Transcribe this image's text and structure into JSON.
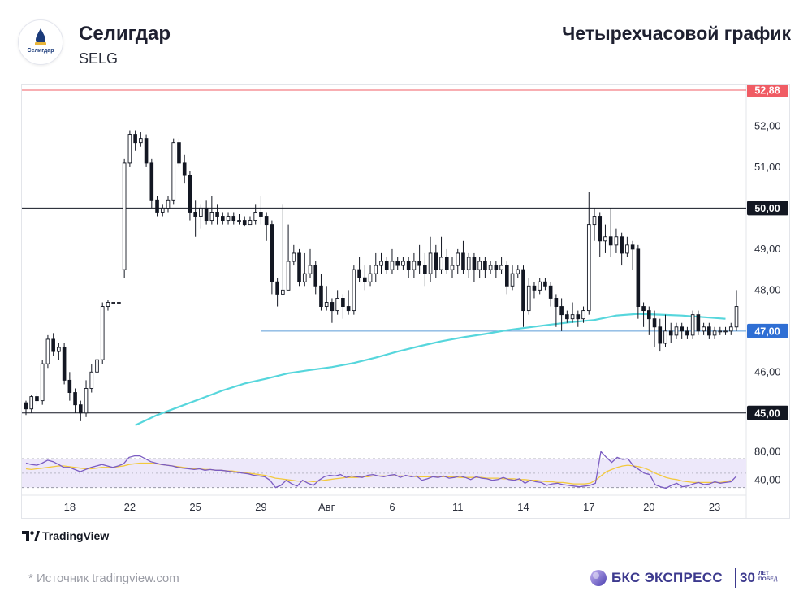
{
  "header": {
    "company_name": "Селигдар",
    "ticker": "SELG",
    "chart_type_label": "Четырехчасовой график",
    "logo_text": "Селигдар"
  },
  "footer": {
    "tradingview_label": "TradingView",
    "source": "*  Источник tradingview.com",
    "bks_brand": "БКС ЭКСПРЕСС",
    "bks_number": "30",
    "bks_sub_line1": "ЛЕТ",
    "bks_sub_line2": "ПОБЕД"
  },
  "colors": {
    "candle": "#131722",
    "ma": "#56d6dc",
    "resistance_red": "#f05c64",
    "level_line": "#131722",
    "support_blue": "#5a9bd8",
    "rsi_line": "#7b5cc2",
    "rsi_signal": "#f3c93d",
    "rsi_band": "#ede8fa",
    "price_tag_dark": "#131722",
    "price_tag_blue": "#2f6fd4",
    "price_tag_red": "#f05c64",
    "bks_brand": "#3d3a8e"
  },
  "chart_data": {
    "type": "candlestick",
    "title": "",
    "y_ticks": [
      "52,00",
      "51,00",
      "50,00",
      "49,00",
      "48,00",
      "47,00",
      "46,00",
      "45,00"
    ],
    "y_tick_values": [
      52,
      51,
      50,
      49,
      48,
      47,
      46,
      45
    ],
    "ylim": [
      44.52,
      53.0
    ],
    "x_ticks": [
      "18",
      "22",
      "25",
      "29",
      "Авг",
      "6",
      "11",
      "14",
      "17",
      "20",
      "23"
    ],
    "x_tick_index": [
      8,
      19,
      31,
      43,
      55,
      67,
      79,
      91,
      103,
      114,
      126
    ],
    "levels": [
      {
        "value": 52.88,
        "label": "52,88",
        "style": "red"
      },
      {
        "value": 50.0,
        "label": "50,00",
        "style": "dark"
      },
      {
        "value": 47.0,
        "label": "47,00",
        "style": "blue"
      },
      {
        "value": 45.0,
        "label": "45,00",
        "style": "dark"
      }
    ],
    "rsi": {
      "ticks": [
        "80,00",
        "40,00"
      ],
      "tick_values": [
        80,
        40
      ],
      "ylim": [
        25,
        95
      ],
      "band": [
        30,
        70
      ],
      "values": [
        64,
        62,
        61,
        64,
        68,
        66,
        62,
        58,
        58,
        55,
        52,
        55,
        58,
        60,
        62,
        60,
        58,
        60,
        63,
        72,
        74,
        74,
        70,
        66,
        64,
        62,
        61,
        60,
        58,
        57,
        56,
        55,
        56,
        54,
        55,
        54,
        54,
        53,
        52,
        51,
        50,
        49,
        47,
        46,
        45,
        40,
        30,
        33,
        40,
        35,
        32,
        40,
        36,
        33,
        40,
        45,
        47,
        46,
        48,
        44,
        46,
        45,
        44,
        47,
        48,
        46,
        45,
        47,
        48,
        44,
        47,
        45,
        46,
        40,
        42,
        45,
        44,
        46,
        43,
        44,
        46,
        44,
        41,
        45,
        43,
        42,
        40,
        41,
        44,
        41,
        40,
        42,
        36,
        40,
        38,
        37,
        33,
        35,
        36,
        34,
        33,
        32,
        31,
        32,
        33,
        36,
        80,
        72,
        65,
        72,
        69,
        70,
        60,
        55,
        50,
        48,
        34,
        31,
        29,
        33,
        36,
        31,
        32,
        35,
        37,
        34,
        35,
        38,
        36,
        37,
        38,
        46
      ],
      "signal": [
        56,
        55,
        56,
        57,
        58,
        59,
        60,
        60,
        59,
        58,
        57,
        56,
        56,
        57,
        58,
        58,
        58,
        59,
        60,
        62,
        63,
        64,
        64,
        64,
        63,
        62,
        61,
        60,
        59,
        58,
        57,
        56,
        56,
        55,
        55,
        54,
        54,
        53,
        53,
        52,
        51,
        50,
        49,
        48,
        47,
        45,
        43,
        42,
        41,
        40,
        39,
        39,
        39,
        38,
        39,
        40,
        41,
        42,
        43,
        44,
        44,
        44,
        45,
        45,
        46,
        46,
        46,
        46,
        46,
        46,
        46,
        46,
        45,
        45,
        45,
        45,
        45,
        45,
        45,
        45,
        44,
        44,
        44,
        44,
        44,
        43,
        43,
        43,
        42,
        42,
        42,
        41,
        41,
        40,
        40,
        39,
        38,
        38,
        37,
        37,
        36,
        35,
        35,
        35,
        36,
        40,
        46,
        52,
        55,
        58,
        60,
        61,
        60,
        59,
        57,
        54,
        50,
        47,
        44,
        42,
        41,
        39,
        38,
        37,
        37,
        37,
        37,
        37,
        37,
        38,
        40
      ]
    },
    "ma": [
      {
        "i": 20,
        "v": 44.7
      },
      {
        "i": 24,
        "v": 44.95
      },
      {
        "i": 28,
        "v": 45.15
      },
      {
        "i": 32,
        "v": 45.35
      },
      {
        "i": 36,
        "v": 45.55
      },
      {
        "i": 40,
        "v": 45.72
      },
      {
        "i": 44,
        "v": 45.84
      },
      {
        "i": 48,
        "v": 45.97
      },
      {
        "i": 52,
        "v": 46.05
      },
      {
        "i": 56,
        "v": 46.12
      },
      {
        "i": 60,
        "v": 46.22
      },
      {
        "i": 64,
        "v": 46.35
      },
      {
        "i": 68,
        "v": 46.5
      },
      {
        "i": 72,
        "v": 46.63
      },
      {
        "i": 76,
        "v": 46.75
      },
      {
        "i": 80,
        "v": 46.85
      },
      {
        "i": 84,
        "v": 46.93
      },
      {
        "i": 88,
        "v": 47.02
      },
      {
        "i": 92,
        "v": 47.09
      },
      {
        "i": 96,
        "v": 47.16
      },
      {
        "i": 100,
        "v": 47.22
      },
      {
        "i": 104,
        "v": 47.27
      },
      {
        "i": 108,
        "v": 47.38
      },
      {
        "i": 112,
        "v": 47.42
      },
      {
        "i": 116,
        "v": 47.4
      },
      {
        "i": 120,
        "v": 47.38
      },
      {
        "i": 124,
        "v": 47.34
      },
      {
        "i": 128,
        "v": 47.3
      }
    ],
    "candles": [
      [
        45.25,
        45.1,
        45.3,
        44.95
      ],
      [
        45.1,
        45.4,
        45.45,
        45.0
      ],
      [
        45.4,
        45.3,
        45.5,
        45.2
      ],
      [
        45.3,
        46.2,
        46.3,
        45.2
      ],
      [
        46.2,
        46.8,
        46.9,
        46.1
      ],
      [
        46.8,
        46.5,
        46.95,
        46.4
      ],
      [
        46.5,
        46.6,
        46.7,
        46.3
      ],
      [
        46.6,
        45.8,
        46.7,
        45.7
      ],
      [
        45.8,
        45.5,
        46.0,
        45.3
      ],
      [
        45.5,
        45.2,
        45.6,
        45.0
      ],
      [
        45.2,
        45.0,
        45.3,
        44.8
      ],
      [
        45.0,
        45.6,
        45.8,
        44.9
      ],
      [
        45.6,
        46.0,
        46.2,
        45.5
      ],
      [
        46.0,
        46.3,
        46.6,
        45.9
      ],
      [
        46.3,
        47.6,
        47.7,
        46.2
      ],
      [
        47.6,
        47.7,
        47.75,
        47.5
      ],
      [
        47.7,
        47.7,
        47.7,
        47.7
      ],
      [
        47.7,
        47.7,
        47.7,
        47.7
      ],
      [
        48.5,
        51.1,
        51.2,
        48.3
      ],
      [
        51.1,
        51.8,
        51.9,
        51.0
      ],
      [
        51.8,
        51.6,
        51.9,
        51.4
      ],
      [
        51.6,
        51.7,
        51.85,
        51.5
      ],
      [
        51.7,
        51.1,
        51.8,
        51.0
      ],
      [
        51.1,
        50.2,
        51.2,
        50.0
      ],
      [
        50.2,
        49.9,
        50.3,
        49.8
      ],
      [
        49.9,
        50.0,
        50.1,
        49.8
      ],
      [
        50.0,
        50.2,
        50.3,
        49.9
      ],
      [
        50.2,
        51.6,
        51.7,
        50.1
      ],
      [
        51.6,
        51.1,
        51.7,
        51.0
      ],
      [
        51.1,
        50.8,
        51.3,
        50.6
      ],
      [
        50.8,
        49.9,
        50.9,
        49.7
      ],
      [
        49.9,
        49.8,
        50.2,
        49.3
      ],
      [
        49.8,
        50.0,
        50.1,
        49.5
      ],
      [
        50.0,
        49.7,
        50.2,
        49.6
      ],
      [
        49.7,
        49.9,
        50.3,
        49.6
      ],
      [
        49.9,
        49.8,
        50.1,
        49.6
      ],
      [
        49.8,
        49.7,
        49.9,
        49.6
      ],
      [
        49.7,
        49.8,
        49.9,
        49.6
      ],
      [
        49.8,
        49.7,
        49.9,
        49.6
      ],
      [
        49.7,
        49.7,
        49.85,
        49.6
      ],
      [
        49.7,
        49.6,
        49.8,
        49.55
      ],
      [
        49.6,
        49.7,
        49.8,
        49.6
      ],
      [
        49.7,
        49.9,
        50.1,
        49.6
      ],
      [
        49.9,
        49.8,
        50.3,
        49.6
      ],
      [
        49.8,
        49.6,
        49.9,
        49.2
      ],
      [
        49.6,
        48.2,
        49.7,
        47.9
      ],
      [
        48.2,
        47.9,
        48.3,
        47.6
      ],
      [
        47.9,
        48.0,
        50.1,
        47.9
      ],
      [
        48.0,
        48.7,
        49.6,
        48.0
      ],
      [
        48.7,
        48.9,
        49.1,
        48.6
      ],
      [
        48.9,
        48.2,
        49.0,
        48.1
      ],
      [
        48.2,
        48.4,
        48.9,
        48.1
      ],
      [
        48.4,
        48.6,
        49.0,
        48.3
      ],
      [
        48.6,
        48.1,
        48.7,
        47.9
      ],
      [
        48.1,
        47.6,
        48.4,
        47.5
      ],
      [
        47.6,
        47.7,
        48.1,
        47.5
      ],
      [
        47.7,
        47.5,
        47.8,
        47.2
      ],
      [
        47.5,
        47.8,
        48.0,
        47.4
      ],
      [
        47.8,
        47.6,
        47.9,
        47.3
      ],
      [
        47.6,
        47.5,
        48.0,
        47.4
      ],
      [
        47.5,
        48.5,
        48.6,
        47.4
      ],
      [
        48.5,
        48.3,
        48.8,
        48.2
      ],
      [
        48.3,
        48.2,
        48.6,
        48.0
      ],
      [
        48.2,
        48.4,
        48.6,
        48.1
      ],
      [
        48.4,
        48.6,
        48.9,
        48.2
      ],
      [
        48.6,
        48.7,
        48.9,
        48.4
      ],
      [
        48.7,
        48.5,
        48.8,
        48.4
      ],
      [
        48.5,
        48.7,
        49.0,
        48.4
      ],
      [
        48.7,
        48.6,
        48.8,
        48.5
      ],
      [
        48.6,
        48.7,
        48.8,
        48.5
      ],
      [
        48.7,
        48.5,
        48.8,
        48.3
      ],
      [
        48.5,
        48.7,
        48.9,
        48.3
      ],
      [
        48.7,
        48.6,
        49.1,
        48.4
      ],
      [
        48.6,
        48.4,
        48.9,
        48.1
      ],
      [
        48.4,
        48.9,
        49.3,
        48.2
      ],
      [
        48.9,
        48.5,
        49.1,
        48.3
      ],
      [
        48.5,
        48.8,
        49.3,
        48.4
      ],
      [
        48.8,
        48.5,
        49.0,
        48.4
      ],
      [
        48.5,
        48.6,
        48.8,
        48.3
      ],
      [
        48.6,
        48.9,
        49.0,
        48.4
      ],
      [
        48.9,
        48.5,
        49.2,
        48.4
      ],
      [
        48.5,
        48.8,
        48.9,
        48.3
      ],
      [
        48.8,
        48.5,
        48.9,
        48.2
      ],
      [
        48.5,
        48.7,
        48.8,
        48.3
      ],
      [
        48.7,
        48.5,
        48.8,
        48.3
      ],
      [
        48.5,
        48.6,
        48.7,
        48.4
      ],
      [
        48.6,
        48.5,
        48.7,
        48.3
      ],
      [
        48.5,
        48.6,
        48.8,
        48.4
      ],
      [
        48.6,
        48.1,
        48.7,
        47.9
      ],
      [
        48.1,
        48.4,
        48.6,
        48.0
      ],
      [
        48.4,
        48.5,
        48.6,
        48.3
      ],
      [
        48.5,
        47.5,
        48.6,
        47.1
      ],
      [
        47.5,
        48.1,
        48.3,
        47.4
      ],
      [
        48.1,
        48.0,
        48.2,
        47.8
      ],
      [
        48.0,
        48.2,
        48.3,
        47.9
      ],
      [
        48.2,
        48.1,
        48.3,
        48.0
      ],
      [
        48.1,
        47.8,
        48.2,
        47.6
      ],
      [
        47.8,
        47.6,
        47.9,
        47.1
      ],
      [
        47.6,
        47.4,
        47.8,
        47.0
      ],
      [
        47.4,
        47.3,
        47.5,
        47.2
      ],
      [
        47.3,
        47.4,
        47.7,
        47.2
      ],
      [
        47.4,
        47.3,
        47.5,
        47.1
      ],
      [
        47.3,
        47.5,
        47.6,
        47.2
      ],
      [
        47.5,
        49.6,
        50.4,
        47.4
      ],
      [
        49.6,
        49.8,
        50.0,
        49.2
      ],
      [
        49.8,
        49.2,
        49.9,
        48.8
      ],
      [
        49.2,
        49.3,
        49.6,
        48.9
      ],
      [
        49.3,
        49.1,
        50.0,
        48.8
      ],
      [
        49.1,
        49.3,
        49.5,
        48.9
      ],
      [
        49.3,
        48.9,
        49.4,
        48.6
      ],
      [
        48.9,
        49.1,
        49.3,
        48.8
      ],
      [
        49.1,
        49.0,
        49.2,
        48.5
      ],
      [
        49.0,
        47.6,
        49.1,
        47.3
      ],
      [
        47.6,
        47.5,
        47.7,
        47.1
      ],
      [
        47.5,
        47.3,
        47.6,
        46.9
      ],
      [
        47.3,
        47.1,
        47.5,
        46.6
      ],
      [
        47.1,
        46.7,
        47.3,
        46.5
      ],
      [
        46.7,
        47.0,
        47.4,
        46.6
      ],
      [
        47.0,
        46.9,
        47.2,
        46.7
      ],
      [
        46.9,
        47.1,
        47.2,
        46.8
      ],
      [
        47.1,
        47.0,
        47.2,
        46.8
      ],
      [
        47.0,
        46.9,
        47.1,
        46.8
      ],
      [
        46.9,
        47.4,
        47.5,
        46.8
      ],
      [
        47.4,
        47.0,
        47.5,
        46.9
      ],
      [
        47.0,
        47.1,
        47.2,
        46.9
      ],
      [
        47.1,
        46.9,
        47.2,
        46.8
      ],
      [
        46.9,
        47.0,
        47.1,
        46.8
      ],
      [
        47.0,
        47.0,
        47.1,
        46.9
      ],
      [
        47.0,
        47.0,
        47.1,
        46.9
      ],
      [
        47.0,
        47.1,
        47.2,
        46.9
      ],
      [
        47.1,
        47.6,
        48.0,
        47.0
      ]
    ]
  }
}
